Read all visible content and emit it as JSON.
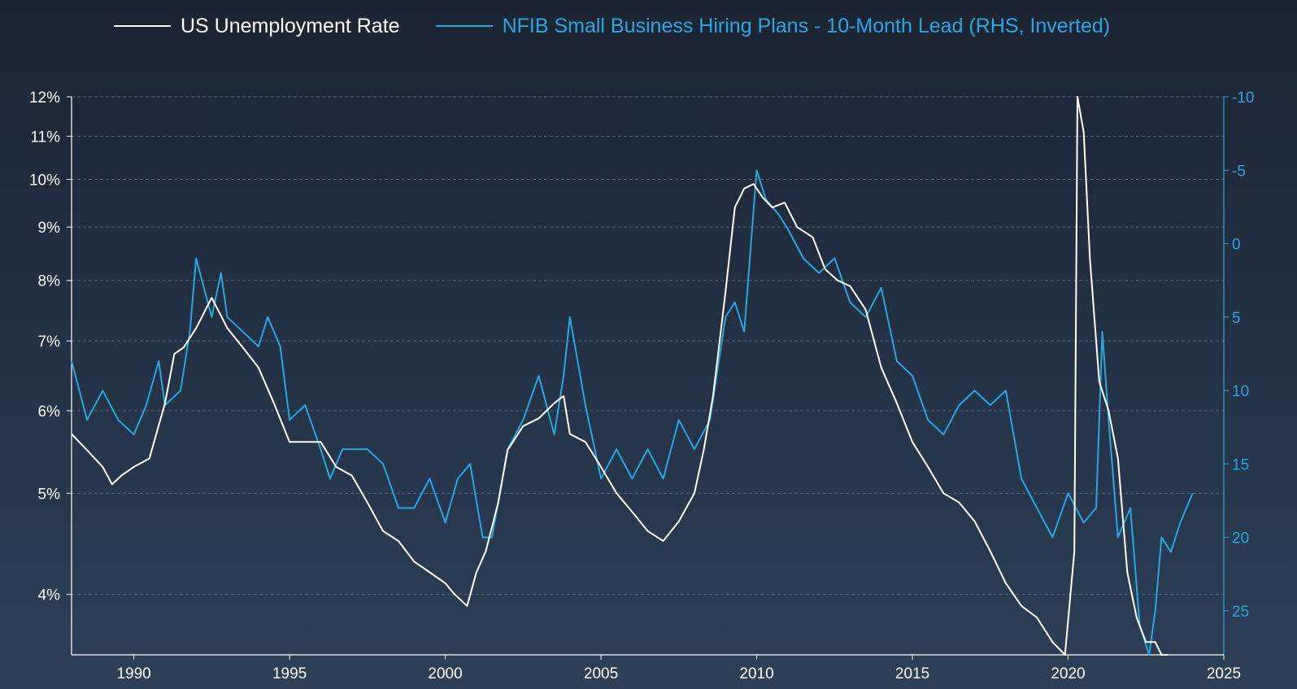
{
  "chart_data": {
    "type": "line",
    "title": "",
    "xlabel": "",
    "ylabel": "",
    "y2label": "",
    "x_axis": {
      "min": 1988,
      "max": 2025,
      "ticks": [
        1990,
        1995,
        2000,
        2005,
        2010,
        2015,
        2020,
        2025
      ]
    },
    "y_left": {
      "scale": "log",
      "min": 3.5,
      "max": 12,
      "ticks": [
        4,
        5,
        6,
        7,
        8,
        9,
        10,
        11,
        12
      ],
      "tick_labels": [
        "4%",
        "5%",
        "6%",
        "7%",
        "8%",
        "9%",
        "10%",
        "11%",
        "12%"
      ],
      "color": "#ffffff"
    },
    "y_right": {
      "scale": "linear",
      "inverted": true,
      "min": -10,
      "max": 28,
      "ticks": [
        -10,
        -5,
        0,
        5,
        10,
        15,
        20,
        25
      ],
      "tick_labels": [
        "-10",
        "-5",
        "0",
        "5",
        "10",
        "15",
        "20",
        "25"
      ],
      "color": "#29a8e0"
    },
    "grid": "horizontal-dashed",
    "legend_position": "top",
    "series": [
      {
        "name": "US Unemployment Rate",
        "axis": "left",
        "color": "#ffffff",
        "x": [
          1988.0,
          1988.5,
          1989.0,
          1989.3,
          1989.6,
          1990.0,
          1990.5,
          1991.0,
          1991.3,
          1991.6,
          1992.0,
          1992.5,
          1992.8,
          1993.0,
          1993.5,
          1994.0,
          1994.5,
          1995.0,
          1995.5,
          1996.0,
          1996.5,
          1997.0,
          1997.5,
          1998.0,
          1998.5,
          1999.0,
          1999.5,
          2000.0,
          2000.3,
          2000.7,
          2001.0,
          2001.3,
          2001.7,
          2002.0,
          2002.5,
          2003.0,
          2003.5,
          2003.8,
          2004.0,
          2004.5,
          2005.0,
          2005.5,
          2006.0,
          2006.5,
          2007.0,
          2007.5,
          2008.0,
          2008.3,
          2008.6,
          2009.0,
          2009.3,
          2009.6,
          2009.9,
          2010.2,
          2010.5,
          2010.9,
          2011.3,
          2011.8,
          2012.2,
          2012.6,
          2013.0,
          2013.5,
          2014.0,
          2014.5,
          2015.0,
          2015.5,
          2016.0,
          2016.5,
          2017.0,
          2017.5,
          2018.0,
          2018.5,
          2019.0,
          2019.5,
          2019.9,
          2020.2,
          2020.3,
          2020.5,
          2020.7,
          2021.0,
          2021.3,
          2021.6,
          2021.9,
          2022.2,
          2022.5,
          2022.8,
          2023.0,
          2023.2
        ],
        "values": [
          5.7,
          5.5,
          5.3,
          5.1,
          5.2,
          5.3,
          5.4,
          6.1,
          6.8,
          6.9,
          7.2,
          7.7,
          7.4,
          7.2,
          6.9,
          6.6,
          6.1,
          5.6,
          5.6,
          5.6,
          5.3,
          5.2,
          4.9,
          4.6,
          4.5,
          4.3,
          4.2,
          4.1,
          4.0,
          3.9,
          4.2,
          4.4,
          4.9,
          5.5,
          5.8,
          5.9,
          6.1,
          6.2,
          5.7,
          5.6,
          5.3,
          5.0,
          4.8,
          4.6,
          4.5,
          4.7,
          5.0,
          5.5,
          6.2,
          7.8,
          9.4,
          9.8,
          9.9,
          9.6,
          9.4,
          9.5,
          9.0,
          8.8,
          8.2,
          8.0,
          7.9,
          7.5,
          6.6,
          6.1,
          5.6,
          5.3,
          5.0,
          4.9,
          4.7,
          4.4,
          4.1,
          3.9,
          3.8,
          3.6,
          3.5,
          4.4,
          14.7,
          11.1,
          8.4,
          6.4,
          6.0,
          5.4,
          4.2,
          3.8,
          3.6,
          3.6,
          3.5,
          3.5
        ]
      },
      {
        "name": "NFIB Small Business Hiring Plans - 10-Month Lead (RHS, Inverted)",
        "axis": "right",
        "color": "#29a8e0",
        "x": [
          1988.0,
          1988.5,
          1989.0,
          1989.5,
          1990.0,
          1990.4,
          1990.8,
          1991.0,
          1991.5,
          1991.8,
          1992.0,
          1992.5,
          1992.8,
          1993.0,
          1993.5,
          1994.0,
          1994.3,
          1994.7,
          1995.0,
          1995.5,
          1996.0,
          1996.3,
          1996.7,
          1997.0,
          1997.5,
          1998.0,
          1998.5,
          1999.0,
          1999.5,
          2000.0,
          2000.4,
          2000.8,
          2001.2,
          2001.5,
          2002.0,
          2002.5,
          2003.0,
          2003.5,
          2003.8,
          2004.0,
          2004.5,
          2005.0,
          2005.5,
          2006.0,
          2006.5,
          2007.0,
          2007.5,
          2008.0,
          2008.5,
          2009.0,
          2009.3,
          2009.6,
          2010.0,
          2010.3,
          2010.7,
          2011.0,
          2011.5,
          2012.0,
          2012.5,
          2013.0,
          2013.5,
          2014.0,
          2014.5,
          2015.0,
          2015.5,
          2016.0,
          2016.5,
          2017.0,
          2017.5,
          2018.0,
          2018.5,
          2019.0,
          2019.5,
          2020.0,
          2020.5,
          2020.9,
          2021.1,
          2021.3,
          2021.6,
          2022.0,
          2022.3,
          2022.6,
          2022.8,
          2023.0,
          2023.3,
          2023.6,
          2024.0
        ],
        "values": [
          8,
          12,
          10,
          12,
          13,
          11,
          8,
          11,
          10,
          6,
          1,
          5,
          2,
          5,
          6,
          7,
          5,
          7,
          12,
          11,
          14,
          16,
          14,
          14,
          14,
          15,
          18,
          18,
          16,
          19,
          16,
          15,
          20,
          20,
          14,
          12,
          9,
          13,
          9,
          5,
          11,
          16,
          14,
          16,
          14,
          16,
          12,
          14,
          12,
          5,
          4,
          6,
          -5,
          -3,
          -2,
          -1,
          1,
          2,
          1,
          4,
          5,
          3,
          8,
          9,
          12,
          13,
          11,
          10,
          11,
          10,
          16,
          18,
          20,
          17,
          19,
          18,
          6,
          12,
          20,
          18,
          26,
          28,
          25,
          20,
          21,
          19,
          17
        ]
      }
    ]
  }
}
